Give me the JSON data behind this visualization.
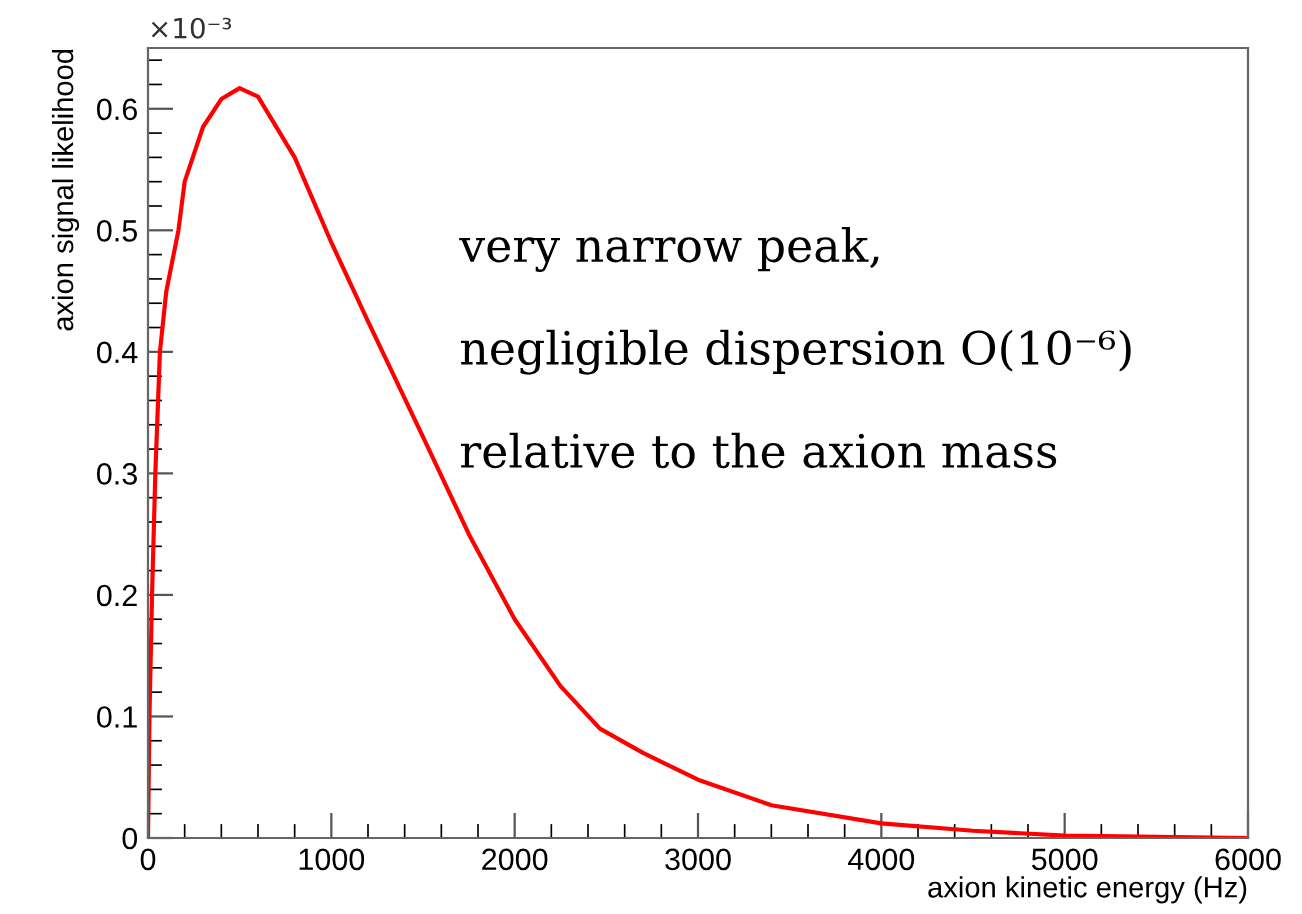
{
  "chart_data": {
    "type": "line",
    "xlabel": "axion kinetic energy (Hz)",
    "ylabel": "axion signal likelihood",
    "x": [
      0,
      8,
      22,
      40,
      65,
      100,
      166,
      200,
      300,
      400,
      500,
      600,
      800,
      1000,
      1200,
      1500,
      1750,
      2000,
      2250,
      2465,
      2700,
      3000,
      3400,
      4000,
      4500,
      5000,
      5500,
      6000
    ],
    "series": [
      {
        "color": "#ff0000",
        "values": [
          0,
          0.1,
          0.2,
          0.3,
          0.4,
          0.45,
          0.5,
          0.54,
          0.585,
          0.608,
          0.617,
          0.61,
          0.56,
          0.49,
          0.425,
          0.33,
          0.25,
          0.18,
          0.125,
          0.09,
          0.07,
          0.048,
          0.027,
          0.012,
          0.006,
          0.002,
          0.001,
          0
        ]
      }
    ],
    "xlim": [
      0,
      6000
    ],
    "ylim": [
      0,
      0.65
    ],
    "xticks": [
      0,
      1000,
      2000,
      3000,
      4000,
      5000,
      6000
    ],
    "yticks": [
      0,
      0.1,
      0.2,
      0.3,
      0.4,
      0.5,
      0.6
    ],
    "grid": false,
    "legend": false,
    "marker": "none",
    "line_style": "solid",
    "annotations": [
      "×10⁻³",
      "very narrow peak,",
      "negligible dispersion O(10⁻⁶)",
      "relative to the axion mass"
    ]
  }
}
